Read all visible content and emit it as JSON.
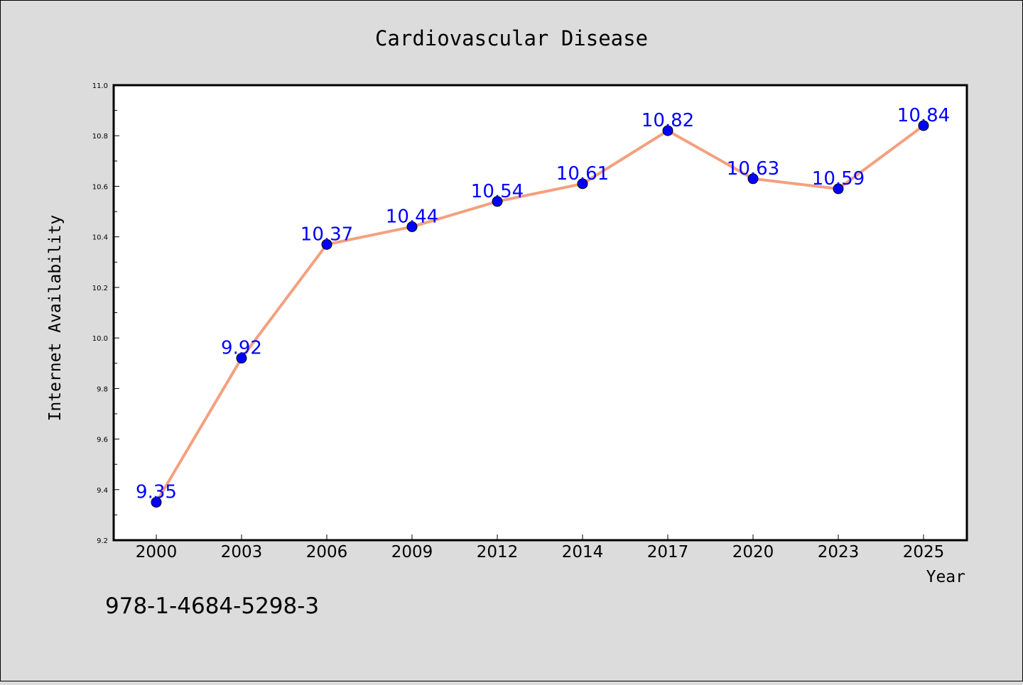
{
  "chart_data": {
    "type": "line",
    "title": "Cardiovascular Disease",
    "xlabel": "Year",
    "ylabel": "Internet Availability",
    "categories": [
      "2000",
      "2003",
      "2006",
      "2009",
      "2012",
      "2014",
      "2017",
      "2020",
      "2023",
      "2025"
    ],
    "series": [
      {
        "values": [
          9.35,
          9.92,
          10.37,
          10.44,
          10.54,
          10.61,
          10.82,
          10.63,
          10.59,
          10.84
        ],
        "data_labels": [
          "9.35",
          "9.92",
          "10.37",
          "10.44",
          "10.54",
          "10.61",
          "10.82",
          "10.63",
          "10.59",
          "10.84"
        ],
        "line_color": "#f4a07e",
        "marker_color": "#0000ff"
      }
    ],
    "ylim": [
      9.2,
      11.0
    ],
    "yticks": [
      "9.2",
      "9.4",
      "9.6",
      "9.8",
      "10.0",
      "10.2",
      "10.4",
      "10.6",
      "10.8",
      "11.0"
    ],
    "grid": false,
    "label_color": "#0000ff"
  },
  "footer": {
    "isbn": "978-1-4684-5298-3"
  },
  "colors": {
    "page_background": "#dcdcdc",
    "plot_background": "#ffffff"
  }
}
